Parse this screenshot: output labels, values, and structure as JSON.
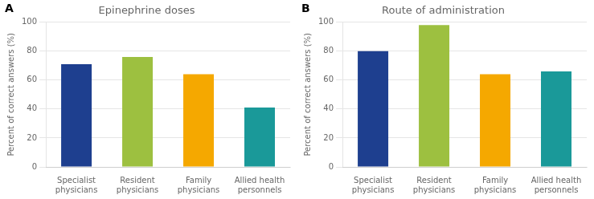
{
  "chart_data": [
    {
      "type": "bar",
      "title": "Epinephrine doses",
      "annotations": [
        "A"
      ],
      "categories": [
        "Specialist\nphysicians",
        "Resident\nphysicians",
        "Family\nphysicians",
        "Allied health\npersonnels"
      ],
      "values": [
        71,
        76,
        64,
        41
      ],
      "colors": [
        "#1e3f8f",
        "#9dc040",
        "#f5a800",
        "#1a9999"
      ],
      "ylabel": "Percent of correct answers (%)",
      "ylim": [
        0,
        100
      ],
      "yticks": [
        0,
        20,
        40,
        60,
        80,
        100
      ],
      "grid": true
    },
    {
      "type": "bar",
      "title": "Route of administration",
      "annotations": [
        "B"
      ],
      "categories": [
        "Specialist\nphysicians",
        "Resident\nphysicians",
        "Family\nphysicians",
        "Allied health\npersonnels"
      ],
      "values": [
        80,
        98,
        64,
        66
      ],
      "colors": [
        "#1e3f8f",
        "#9dc040",
        "#f5a800",
        "#1a9999"
      ],
      "ylabel": "Percent of correct answers (%)",
      "ylim": [
        0,
        100
      ],
      "yticks": [
        0,
        20,
        40,
        60,
        80,
        100
      ],
      "grid": true
    }
  ]
}
